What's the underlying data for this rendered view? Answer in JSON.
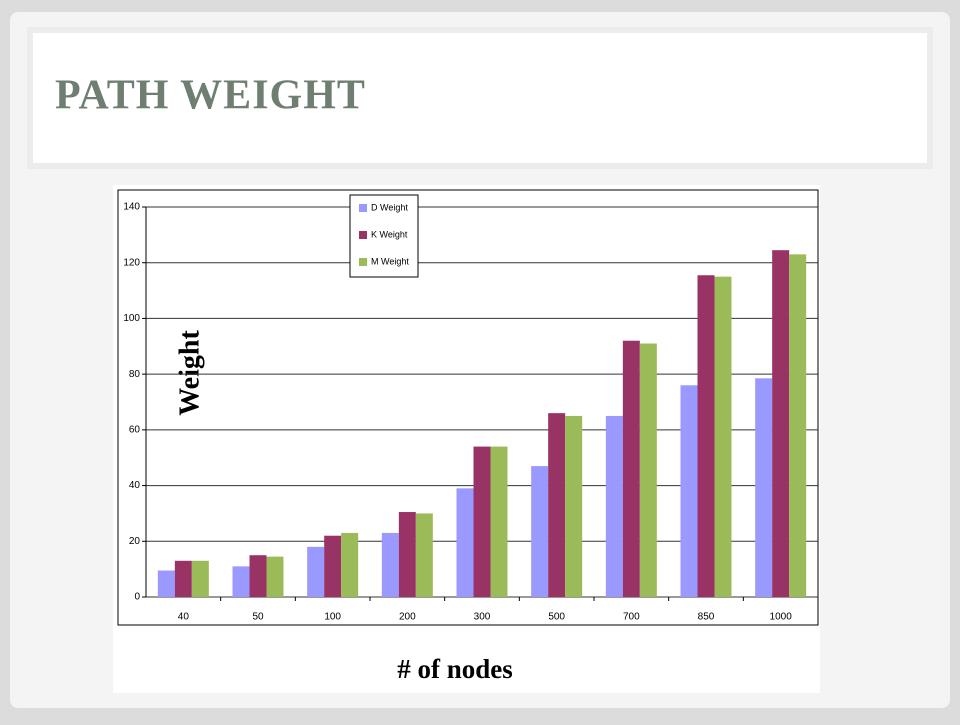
{
  "slide_title": "PATH WEIGHT",
  "chart_data": {
    "type": "bar",
    "x_label": "# of nodes",
    "y_label": "Weight",
    "categories": [
      "40",
      "50",
      "100",
      "200",
      "300",
      "500",
      "700",
      "850",
      "1000"
    ],
    "series": [
      {
        "name": "D Weight",
        "color": "#9999ff",
        "values": [
          9.5,
          11,
          18,
          23,
          39,
          47,
          65,
          76,
          78.5
        ]
      },
      {
        "name": "K Weight",
        "color": "#993366",
        "values": [
          13,
          15,
          22,
          30.5,
          54,
          66,
          92,
          115.5,
          124.5
        ]
      },
      {
        "name": "M Weight",
        "color": "#9bbb59",
        "values": [
          13,
          14.5,
          23,
          30,
          54,
          65,
          91,
          115,
          123
        ]
      }
    ],
    "ylim": [
      0,
      140
    ],
    "yticks": [
      0,
      20,
      40,
      60,
      80,
      100,
      120,
      140
    ],
    "grid": true
  }
}
